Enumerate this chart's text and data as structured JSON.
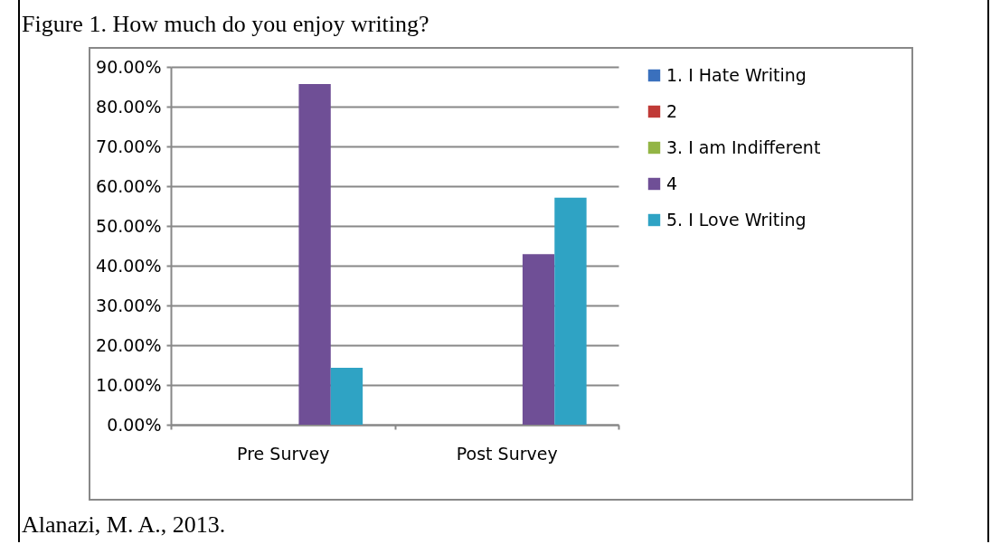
{
  "chart_data": {
    "type": "bar",
    "title": "Figure 1. How much do you enjoy writing?",
    "categories": [
      "Pre Survey",
      "Post Survey"
    ],
    "series": [
      {
        "name": "1. I Hate Writing",
        "color": "#3a70bd",
        "values": [
          0,
          0
        ]
      },
      {
        "name": "2",
        "color": "#c03a37",
        "values": [
          0,
          0
        ]
      },
      {
        "name": "3. I am Indifferent",
        "color": "#93b545",
        "values": [
          0,
          0
        ]
      },
      {
        "name": "4",
        "color": "#6f4f96",
        "values": [
          85.7,
          42.9
        ]
      },
      {
        "name": "5. I Love Writing",
        "color": "#2fa3c4",
        "values": [
          14.3,
          57.1
        ]
      }
    ],
    "ylim": [
      0,
      90
    ],
    "yticks": [
      {
        "value": 0,
        "label": "0.00%"
      },
      {
        "value": 10,
        "label": "10.00%"
      },
      {
        "value": 20,
        "label": "20.00%"
      },
      {
        "value": 30,
        "label": "30.00%"
      },
      {
        "value": 40,
        "label": "40.00%"
      },
      {
        "value": 50,
        "label": "50.00%"
      },
      {
        "value": 60,
        "label": "60.00%"
      },
      {
        "value": 70,
        "label": "70.00%"
      },
      {
        "value": 80,
        "label": "80.00%"
      },
      {
        "value": 90,
        "label": "90.00%"
      }
    ],
    "grid": "y",
    "legend": "right",
    "annotations": [
      "Alanazi, M. A., 2013."
    ]
  }
}
